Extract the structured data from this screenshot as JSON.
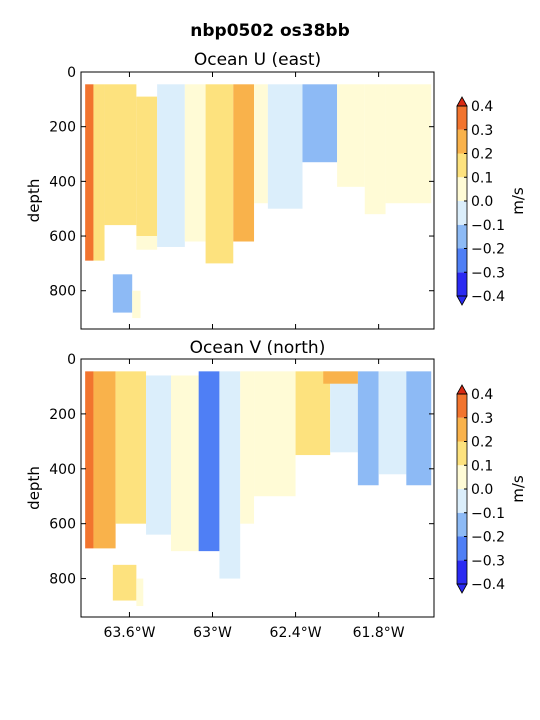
{
  "figure": {
    "suptitle": "nbp0502 os38bb"
  },
  "chart_data": [
    {
      "type": "heatmap",
      "title": "Ocean U (east)",
      "ylabel": "depth",
      "xlabel": "",
      "xlim": [
        63.95,
        61.4
      ],
      "ylim": [
        940,
        0
      ],
      "x_tick_labels": [
        "63.6°W",
        "63°W",
        "62.4°W",
        "61.8°W"
      ],
      "x_tick_values": [
        63.6,
        63.0,
        62.4,
        61.8
      ],
      "y_tick_values": [
        0,
        200,
        400,
        600,
        800
      ],
      "colorbar": {
        "label": "m/s",
        "levels": [
          -0.4,
          -0.3,
          -0.2,
          -0.1,
          0.0,
          0.1,
          0.2,
          0.3,
          0.4
        ],
        "tick_labels": [
          "−0.4",
          "−0.3",
          "−0.2",
          "−0.1",
          "0.0",
          "0.1",
          "0.2",
          "0.3",
          "0.4"
        ],
        "colors": [
          "#2a2af2",
          "#4f7ff5",
          "#8dbaf5",
          "#dbeefb",
          "#fffbd6",
          "#fde27e",
          "#f9b24b",
          "#f2742e",
          "#d92a13"
        ]
      },
      "regions": [
        {
          "x0": 63.92,
          "x1": 63.86,
          "d0": 45,
          "d1": 690,
          "v": 0.32
        },
        {
          "x0": 63.86,
          "x1": 63.78,
          "d0": 45,
          "d1": 690,
          "v": 0.18
        },
        {
          "x0": 63.78,
          "x1": 63.55,
          "d0": 45,
          "d1": 560,
          "v": 0.12
        },
        {
          "x0": 63.55,
          "x1": 63.4,
          "d0": 90,
          "d1": 600,
          "v": 0.16
        },
        {
          "x0": 63.55,
          "x1": 63.4,
          "d0": 600,
          "d1": 650,
          "v": 0.05
        },
        {
          "x0": 63.4,
          "x1": 63.2,
          "d0": 45,
          "d1": 640,
          "v": -0.05
        },
        {
          "x0": 63.2,
          "x1": 63.05,
          "d0": 45,
          "d1": 620,
          "v": 0.04
        },
        {
          "x0": 63.05,
          "x1": 62.85,
          "d0": 45,
          "d1": 700,
          "v": 0.12
        },
        {
          "x0": 62.85,
          "x1": 62.7,
          "d0": 45,
          "d1": 620,
          "v": 0.25
        },
        {
          "x0": 62.7,
          "x1": 62.6,
          "d0": 45,
          "d1": 480,
          "v": 0.05
        },
        {
          "x0": 62.6,
          "x1": 62.35,
          "d0": 45,
          "d1": 500,
          "v": -0.08
        },
        {
          "x0": 62.35,
          "x1": 62.1,
          "d0": 45,
          "d1": 330,
          "v": -0.18
        },
        {
          "x0": 62.1,
          "x1": 61.9,
          "d0": 45,
          "d1": 420,
          "v": 0.04
        },
        {
          "x0": 61.9,
          "x1": 61.75,
          "d0": 45,
          "d1": 520,
          "v": 0.06
        },
        {
          "x0": 61.75,
          "x1": 61.42,
          "d0": 45,
          "d1": 480,
          "v": 0.05
        },
        {
          "x0": 63.72,
          "x1": 63.58,
          "d0": 740,
          "d1": 880,
          "v": -0.15
        },
        {
          "x0": 63.58,
          "x1": 63.52,
          "d0": 800,
          "d1": 900,
          "v": 0.02
        }
      ]
    },
    {
      "type": "heatmap",
      "title": "Ocean V (north)",
      "ylabel": "depth",
      "xlabel": "",
      "xlim": [
        63.95,
        61.4
      ],
      "ylim": [
        940,
        0
      ],
      "x_tick_labels": [
        "63.6°W",
        "63°W",
        "62.4°W",
        "61.8°W"
      ],
      "x_tick_values": [
        63.6,
        63.0,
        62.4,
        61.8
      ],
      "y_tick_values": [
        0,
        200,
        400,
        600,
        800
      ],
      "colorbar": {
        "label": "m/s",
        "levels": [
          -0.4,
          -0.3,
          -0.2,
          -0.1,
          0.0,
          0.1,
          0.2,
          0.3,
          0.4
        ],
        "tick_labels": [
          "−0.4",
          "−0.3",
          "−0.2",
          "−0.1",
          "0.0",
          "0.1",
          "0.2",
          "0.3",
          "0.4"
        ],
        "colors": [
          "#2a2af2",
          "#4f7ff5",
          "#8dbaf5",
          "#dbeefb",
          "#fffbd6",
          "#fde27e",
          "#f9b24b",
          "#f2742e",
          "#d92a13"
        ]
      },
      "regions": [
        {
          "x0": 63.92,
          "x1": 63.86,
          "d0": 45,
          "d1": 690,
          "v": 0.38
        },
        {
          "x0": 63.86,
          "x1": 63.7,
          "d0": 45,
          "d1": 690,
          "v": 0.25
        },
        {
          "x0": 63.7,
          "x1": 63.48,
          "d0": 45,
          "d1": 600,
          "v": 0.18
        },
        {
          "x0": 63.48,
          "x1": 63.3,
          "d0": 60,
          "d1": 640,
          "v": -0.06
        },
        {
          "x0": 63.3,
          "x1": 63.1,
          "d0": 60,
          "d1": 700,
          "v": 0.02
        },
        {
          "x0": 63.1,
          "x1": 62.95,
          "d0": 45,
          "d1": 700,
          "v": -0.22
        },
        {
          "x0": 62.95,
          "x1": 62.8,
          "d0": 45,
          "d1": 800,
          "v": -0.08
        },
        {
          "x0": 62.8,
          "x1": 62.7,
          "d0": 45,
          "d1": 600,
          "v": 0.04
        },
        {
          "x0": 62.7,
          "x1": 62.4,
          "d0": 45,
          "d1": 500,
          "v": 0.02
        },
        {
          "x0": 62.4,
          "x1": 62.15,
          "d0": 45,
          "d1": 350,
          "v": 0.14
        },
        {
          "x0": 62.15,
          "x1": 61.95,
          "d0": 45,
          "d1": 340,
          "v": -0.04
        },
        {
          "x0": 61.95,
          "x1": 61.8,
          "d0": 45,
          "d1": 460,
          "v": -0.12
        },
        {
          "x0": 61.8,
          "x1": 61.6,
          "d0": 45,
          "d1": 420,
          "v": -0.05
        },
        {
          "x0": 61.6,
          "x1": 61.42,
          "d0": 45,
          "d1": 460,
          "v": -0.16
        },
        {
          "x0": 62.2,
          "x1": 61.95,
          "d0": 45,
          "d1": 90,
          "v": 0.28
        },
        {
          "x0": 63.72,
          "x1": 63.55,
          "d0": 750,
          "d1": 880,
          "v": 0.16
        },
        {
          "x0": 63.55,
          "x1": 63.5,
          "d0": 800,
          "d1": 900,
          "v": 0.1
        }
      ]
    }
  ]
}
